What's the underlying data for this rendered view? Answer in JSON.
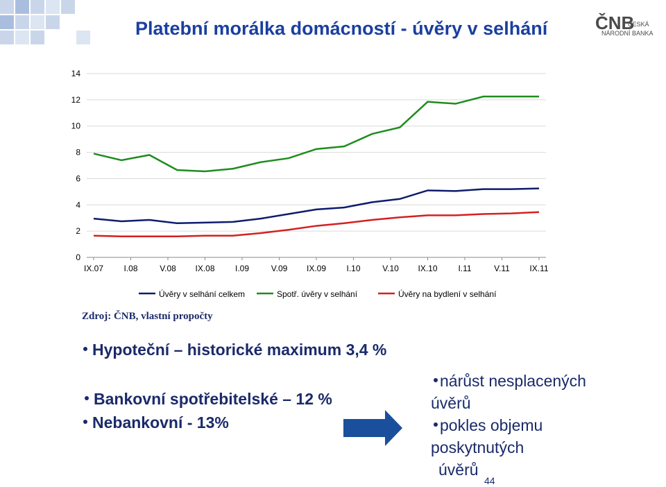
{
  "title": "Platební morálka domácností - úvěry v selhání",
  "logo": {
    "mark": "ČNB",
    "line1": "ČESKÁ",
    "line2": "NÁRODNÍ BANKA"
  },
  "chart_data": {
    "type": "line",
    "x": [
      0,
      3,
      6,
      9,
      12,
      15,
      18,
      21,
      24,
      27,
      30,
      33,
      36,
      39,
      42,
      45,
      48
    ],
    "xlim": [
      0,
      48
    ],
    "xticks": [
      {
        "value": 0,
        "label": "IX.07"
      },
      {
        "value": 4,
        "label": "I.08"
      },
      {
        "value": 8,
        "label": "V.08"
      },
      {
        "value": 12,
        "label": "IX.08"
      },
      {
        "value": 16,
        "label": "I.09"
      },
      {
        "value": 20,
        "label": "V.09"
      },
      {
        "value": 24,
        "label": "IX.09"
      },
      {
        "value": 28,
        "label": "I.10"
      },
      {
        "value": 32,
        "label": "V.10"
      },
      {
        "value": 36,
        "label": "IX.10"
      },
      {
        "value": 40,
        "label": "I.11"
      },
      {
        "value": 44,
        "label": "V.11"
      },
      {
        "value": 48,
        "label": "IX.11"
      }
    ],
    "ylim": [
      0,
      14
    ],
    "yticks": [
      0,
      2,
      4,
      6,
      8,
      10,
      12,
      14
    ],
    "grid": true,
    "series": [
      {
        "name": "Úvěry v selhání celkem",
        "color": "#0d1c6b",
        "values": [
          2.95,
          2.75,
          2.85,
          2.6,
          2.65,
          2.7,
          2.95,
          3.3,
          3.65,
          3.8,
          4.2,
          4.45,
          5.1,
          5.05,
          5.2,
          5.2,
          5.25
        ]
      },
      {
        "name": "Spotř. úvěry v selhání",
        "color": "#1e8c1e",
        "values": [
          7.9,
          7.4,
          7.8,
          6.65,
          6.55,
          6.75,
          7.25,
          7.55,
          8.25,
          8.45,
          9.4,
          9.9,
          11.85,
          11.7,
          12.25,
          12.25,
          12.25
        ]
      },
      {
        "name": "Úvěry na bydlení v selhání",
        "color": "#d42020",
        "values": [
          1.65,
          1.6,
          1.6,
          1.6,
          1.65,
          1.65,
          1.85,
          2.1,
          2.4,
          2.6,
          2.85,
          3.05,
          3.2,
          3.2,
          3.3,
          3.35,
          3.45
        ]
      }
    ]
  },
  "source": "Zdroj: ČNB, vlastní propočty",
  "bullets_left": [
    "Hypoteční – historické maximum 3,4 %",
    "Bankovní spotřebitelské – 12 %",
    "Nebankovní - 13%"
  ],
  "bullets_right": [
    [
      "nárůst nesplacených",
      "úvěrů"
    ],
    [
      "pokles objemu",
      "poskytnutých",
      "úvěrů"
    ]
  ],
  "page_number": "44"
}
